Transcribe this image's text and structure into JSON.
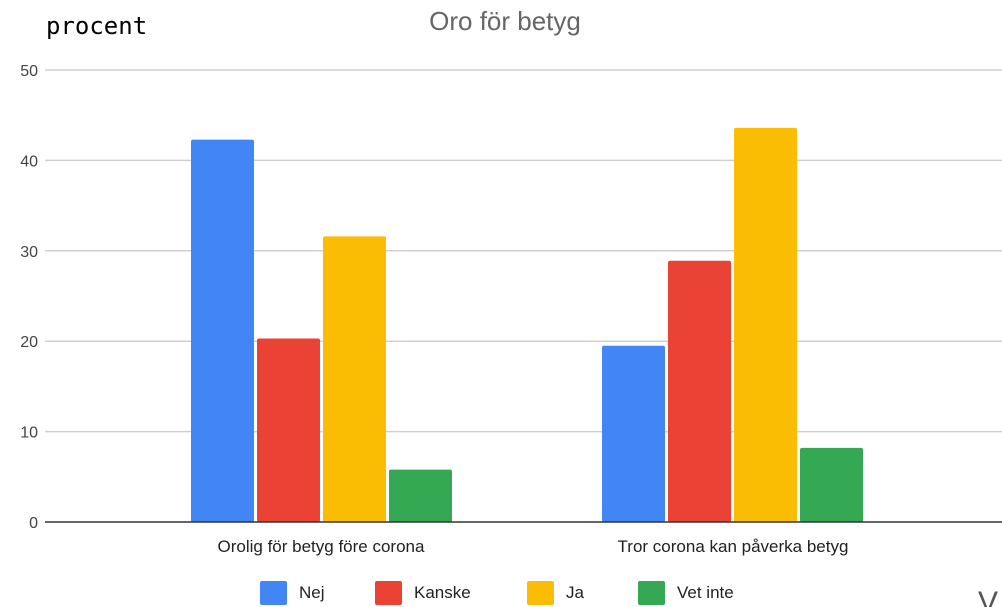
{
  "chart_data": {
    "type": "bar",
    "title": "Oro för betyg",
    "ylabel": "procent",
    "xlabel": "",
    "ylim": [
      0,
      50
    ],
    "yticks": [
      0,
      10,
      20,
      30,
      40,
      50
    ],
    "grid": true,
    "legend_position": "bottom",
    "categories": [
      "Orolig för betyg före corona",
      "Tror corona kan påverka betyg"
    ],
    "series": [
      {
        "name": "Nej",
        "color": "#4285f4",
        "values": [
          42.3,
          19.5
        ]
      },
      {
        "name": "Kanske",
        "color": "#ea4335",
        "values": [
          20.3,
          28.9
        ]
      },
      {
        "name": "Ja",
        "color": "#fbbc04",
        "values": [
          31.6,
          43.6
        ]
      },
      {
        "name": "Vet inte",
        "color": "#34a853",
        "values": [
          5.8,
          8.2
        ]
      }
    ]
  },
  "corner_mark": "V"
}
